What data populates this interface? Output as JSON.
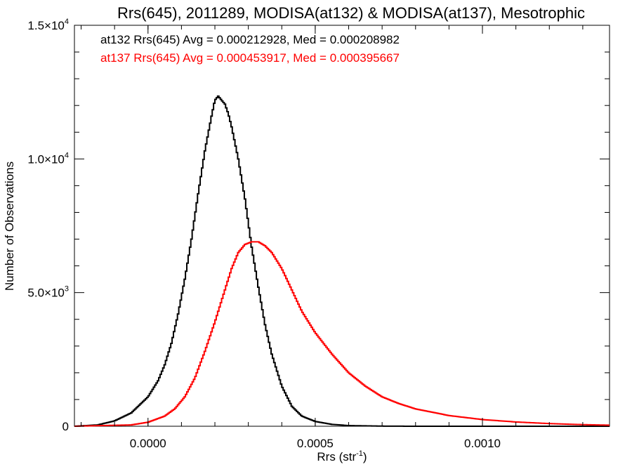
{
  "chart_data": {
    "type": "histogram",
    "title": "Rrs(645), 2011289, MODISA(at132) & MODISA(at137), Mesotrophic",
    "xlabel": "Rrs (str",
    "xlabel_sup": "-1",
    "xlabel_end": ")",
    "ylabel": "Number of Observations",
    "xlim": [
      -0.00022,
      0.00138
    ],
    "ylim": [
      0,
      15000
    ],
    "xticks": [
      {
        "value": 0.0,
        "label": "0.0000"
      },
      {
        "value": 0.0005,
        "label": "0.0005"
      },
      {
        "value": 0.001,
        "label": "0.0010"
      }
    ],
    "yticks": [
      {
        "value": 0,
        "base": "0",
        "exp": ""
      },
      {
        "value": 5000,
        "base": "5.0×10",
        "exp": "3"
      },
      {
        "value": 10000,
        "base": "1.0×10",
        "exp": "4"
      },
      {
        "value": 15000,
        "base": "1.5×10",
        "exp": "4"
      }
    ],
    "annotations": [
      {
        "text": "at132 Rrs(645) Avg = 0.000212928, Med = 0.000208982",
        "color": "#000000"
      },
      {
        "text": "at137 Rrs(645) Avg = 0.000453917, Med = 0.000395667",
        "color": "#ff0000"
      }
    ],
    "series": [
      {
        "color": "#000000",
        "points": [
          [
            -0.00022,
            0
          ],
          [
            -0.00015,
            50
          ],
          [
            -0.0001,
            200
          ],
          [
            -5e-05,
            500
          ],
          [
            0.0,
            1100
          ],
          [
            3e-05,
            1700
          ],
          [
            5e-05,
            2300
          ],
          [
            7e-05,
            3100
          ],
          [
            9e-05,
            4200
          ],
          [
            0.00011,
            5500
          ],
          [
            0.00013,
            7000
          ],
          [
            0.00015,
            8700
          ],
          [
            0.00017,
            10300
          ],
          [
            0.00019,
            11600
          ],
          [
            0.0002,
            12200
          ],
          [
            0.00021,
            12350
          ],
          [
            0.00022,
            12200
          ],
          [
            0.00023,
            12050
          ],
          [
            0.00024,
            11700
          ],
          [
            0.00025,
            11200
          ],
          [
            0.00027,
            10000
          ],
          [
            0.00029,
            8500
          ],
          [
            0.00031,
            6700
          ],
          [
            0.00033,
            5200
          ],
          [
            0.00035,
            3800
          ],
          [
            0.00037,
            2700
          ],
          [
            0.0004,
            1500
          ],
          [
            0.00043,
            750
          ],
          [
            0.00046,
            380
          ],
          [
            0.0005,
            180
          ],
          [
            0.00055,
            70
          ],
          [
            0.0006,
            25
          ],
          [
            0.0007,
            5
          ],
          [
            0.0008,
            0
          ],
          [
            0.00138,
            0
          ]
        ]
      },
      {
        "color": "#ff0000",
        "points": [
          [
            -0.00022,
            0
          ],
          [
            -5e-05,
            50
          ],
          [
            0.0,
            150
          ],
          [
            5e-05,
            380
          ],
          [
            8e-05,
            650
          ],
          [
            0.00011,
            1100
          ],
          [
            0.00014,
            1800
          ],
          [
            0.00017,
            2800
          ],
          [
            0.0002,
            3900
          ],
          [
            0.00023,
            5100
          ],
          [
            0.00025,
            5900
          ],
          [
            0.00027,
            6500
          ],
          [
            0.00029,
            6800
          ],
          [
            0.00031,
            6900
          ],
          [
            0.00033,
            6900
          ],
          [
            0.00035,
            6750
          ],
          [
            0.00037,
            6500
          ],
          [
            0.0004,
            5900
          ],
          [
            0.00043,
            5100
          ],
          [
            0.00046,
            4300
          ],
          [
            0.0005,
            3500
          ],
          [
            0.00055,
            2700
          ],
          [
            0.0006,
            2000
          ],
          [
            0.00065,
            1500
          ],
          [
            0.0007,
            1100
          ],
          [
            0.00075,
            850
          ],
          [
            0.0008,
            650
          ],
          [
            0.0009,
            400
          ],
          [
            0.001,
            250
          ],
          [
            0.0011,
            160
          ],
          [
            0.0012,
            100
          ],
          [
            0.0013,
            60
          ],
          [
            0.00138,
            40
          ]
        ]
      }
    ]
  }
}
